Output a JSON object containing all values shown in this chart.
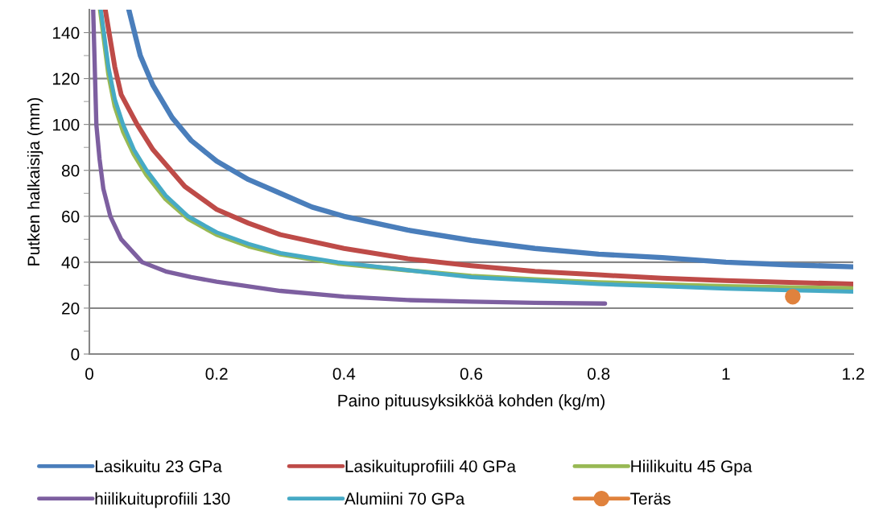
{
  "chart_data": {
    "type": "line",
    "xlabel": "Paino pituusyksikköä kohden (kg/m)",
    "ylabel": "Putken halkaisija (mm)",
    "xlim": [
      0,
      1.2
    ],
    "xticks": [
      0,
      0.2,
      0.4,
      0.6,
      0.8,
      1,
      1.2
    ],
    "ylim": [
      0,
      150
    ],
    "yticks": [
      0,
      {
        "value": 10,
        "label": null
      },
      20,
      {
        "value": 30,
        "label": null
      },
      40,
      {
        "value": 50,
        "label": null
      },
      60,
      {
        "value": 70,
        "label": null
      },
      80,
      {
        "value": 90,
        "label": null
      },
      100,
      {
        "value": 110,
        "label": null
      },
      120,
      {
        "value": 130,
        "label": null
      },
      140
    ],
    "grid": "y",
    "legend": "bottom",
    "marker": "none",
    "series": [
      {
        "name": "Lasikuitu 23 GPa",
        "color": "#4a7ebb",
        "x": [
          0.062,
          0.08,
          0.1,
          0.13,
          0.16,
          0.2,
          0.25,
          0.3,
          0.35,
          0.4,
          0.5,
          0.6,
          0.7,
          0.8,
          0.9,
          1.0,
          1.1,
          1.2
        ],
        "values": [
          150,
          130,
          117,
          103,
          93,
          84,
          76,
          70,
          64,
          60,
          54,
          49.5,
          46,
          43.5,
          42,
          40,
          38.8,
          38
        ]
      },
      {
        "name": "Lasikuituprofiili 40 GPa",
        "color": "#be4b48",
        "x": [
          0.025,
          0.04,
          0.05,
          0.075,
          0.1,
          0.15,
          0.2,
          0.25,
          0.3,
          0.4,
          0.5,
          0.6,
          0.7,
          0.8,
          0.9,
          1.0,
          1.1,
          1.2
        ],
        "values": [
          150,
          125,
          113,
          100,
          89,
          73,
          63,
          57,
          52,
          46,
          41.5,
          38.5,
          36,
          34.5,
          33,
          32,
          31.2,
          30.5
        ]
      },
      {
        "name": "Hiilikuitu 45 Gpa",
        "color": "#98b954",
        "x": [
          0.017,
          0.03,
          0.04,
          0.053,
          0.07,
          0.09,
          0.12,
          0.155,
          0.2,
          0.25,
          0.3,
          0.39,
          0.5,
          0.6,
          0.7,
          0.8,
          0.9,
          1.0,
          1.1,
          1.2
        ],
        "values": [
          150,
          122,
          108,
          97,
          87,
          78,
          67.5,
          59,
          52,
          47,
          43.5,
          39.5,
          36.5,
          34,
          32.5,
          31.2,
          30.3,
          29.5,
          29,
          28.5
        ]
      },
      {
        "name": "hiilikuituprofiili 130",
        "color": "#7d5fa0",
        "x": [
          0.006,
          0.009,
          0.011,
          0.016,
          0.022,
          0.033,
          0.05,
          0.083,
          0.12,
          0.16,
          0.2,
          0.3,
          0.4,
          0.5,
          0.6,
          0.7,
          0.81
        ],
        "values": [
          150,
          120,
          100,
          85,
          72,
          60,
          50,
          40,
          36,
          33.5,
          31.5,
          27.5,
          25,
          23.5,
          22.8,
          22.3,
          22
        ]
      },
      {
        "name": "Alumiini 70 GPa",
        "color": "#46aac5",
        "x": [
          0.018,
          0.03,
          0.04,
          0.053,
          0.07,
          0.09,
          0.12,
          0.155,
          0.2,
          0.25,
          0.3,
          0.39,
          0.5,
          0.6,
          0.7,
          0.8,
          0.9,
          1.0,
          1.1,
          1.2
        ],
        "values": [
          150,
          125,
          111,
          100,
          89,
          80,
          69,
          60,
          53,
          48,
          44,
          40,
          36.5,
          33.5,
          32,
          30.5,
          29.5,
          28.5,
          27.8,
          27.2
        ]
      },
      {
        "name": "Teräs",
        "color": "#e0823d",
        "marker": "circle",
        "x": [
          1.105
        ],
        "values": [
          25
        ]
      }
    ]
  }
}
